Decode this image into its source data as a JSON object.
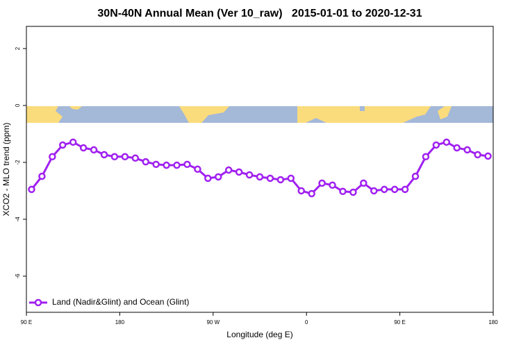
{
  "chart_data": {
    "type": "line",
    "title": "30N-40N Annual Mean (Ver 10_raw)   2015-01-01 to 2020-12-31",
    "x_label": "Longitude (deg E)",
    "y_label": "XCO2 - MLO trend (ppm)",
    "x": [
      95,
      105,
      115,
      125,
      135,
      145,
      155,
      165,
      175,
      185,
      195,
      205,
      215,
      225,
      235,
      245,
      255,
      265,
      275,
      285,
      295,
      305,
      315,
      325,
      335,
      345,
      355,
      365,
      375,
      385,
      395,
      405,
      415,
      425,
      435,
      445,
      455,
      465,
      475,
      485,
      495,
      505,
      515,
      525,
      535
    ],
    "series": [
      {
        "name": "Land (Nadir&Glint) and Ocean (Glint)",
        "color": "#a020f0",
        "values": [
          -2.95,
          -2.49,
          -1.8,
          -1.39,
          -1.29,
          -1.49,
          -1.56,
          -1.73,
          -1.8,
          -1.8,
          -1.85,
          -1.98,
          -2.07,
          -2.1,
          -2.1,
          -2.07,
          -2.24,
          -2.56,
          -2.51,
          -2.27,
          -2.34,
          -2.44,
          -2.51,
          -2.56,
          -2.61,
          -2.56,
          -3.0,
          -3.1,
          -2.73,
          -2.8,
          -3.02,
          -3.05,
          -2.73,
          -3.0,
          -2.95,
          -2.95,
          -2.95,
          -2.49,
          -1.8,
          -1.39,
          -1.29,
          -1.49,
          -1.56,
          -1.73,
          -1.78
        ]
      }
    ],
    "xlim": [
      90,
      540
    ],
    "xticks": [
      {
        "value": 90,
        "label": "90 E"
      },
      180,
      {
        "value": 270,
        "label": "90 W"
      },
      {
        "value": 360,
        "label": "0"
      },
      {
        "value": 450,
        "label": "90 E"
      },
      {
        "value": 540,
        "label": "180"
      }
    ],
    "ylim": [
      -7.27,
      2.78
    ],
    "yticks": [
      -6,
      -4,
      -2,
      0,
      2
    ],
    "legend": "bottom-left"
  }
}
